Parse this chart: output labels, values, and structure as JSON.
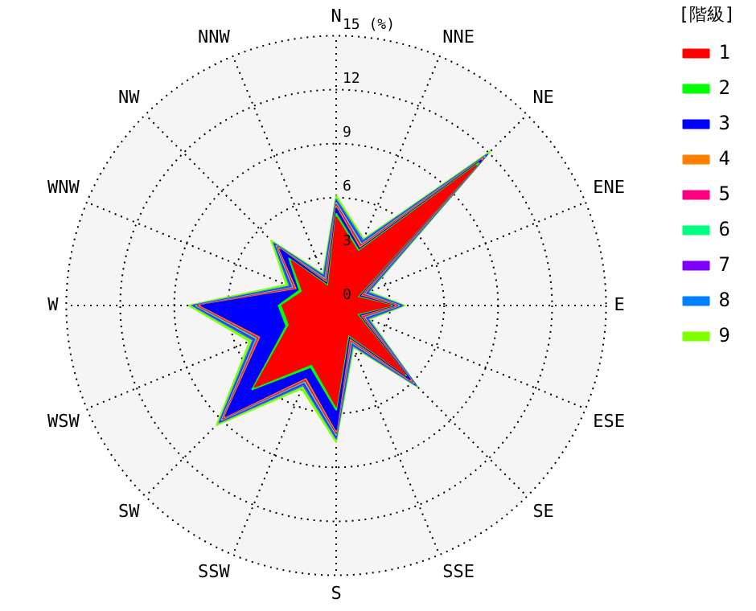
{
  "chart_data": {
    "type": "radar",
    "categories": [
      "N",
      "NNE",
      "NE",
      "ENE",
      "E",
      "ESE",
      "SE",
      "SSE",
      "S",
      "SSW",
      "SW",
      "WSW",
      "W",
      "WNW",
      "NW",
      "NNW"
    ],
    "series": [
      {
        "name": "1",
        "color": "#ff0000",
        "values": [
          4.9,
          3.2,
          11.0,
          1.2,
          3.0,
          1.2,
          5.4,
          1.7,
          5.6,
          3.5,
          6.4,
          2.8,
          3.0,
          2.0,
          3.5,
          1.1
        ]
      },
      {
        "name": "2",
        "color": "#00ff00",
        "values": [
          5.1,
          3.3,
          11.2,
          1.3,
          3.1,
          1.3,
          5.5,
          1.8,
          5.8,
          3.7,
          6.6,
          3.0,
          3.2,
          2.2,
          3.7,
          1.2
        ]
      },
      {
        "name": "3",
        "color": "#0000ff",
        "values": [
          5.4,
          3.4,
          11.4,
          1.4,
          3.2,
          1.4,
          5.8,
          1.9,
          6.9,
          4.3,
          8.7,
          4.5,
          7.5,
          2.3,
          4.4,
          1.3
        ]
      },
      {
        "name": "4",
        "color": "#ff8000",
        "values": [
          5.5,
          3.5,
          11.5,
          1.5,
          3.3,
          1.5,
          5.9,
          2.0,
          7.0,
          4.4,
          8.8,
          4.6,
          7.6,
          2.4,
          4.5,
          1.4
        ]
      },
      {
        "name": "5",
        "color": "#ff0080",
        "values": [
          5.6,
          3.6,
          11.6,
          1.6,
          3.4,
          1.6,
          6.0,
          2.1,
          7.1,
          4.5,
          8.9,
          4.7,
          7.7,
          2.5,
          4.6,
          1.5
        ]
      },
      {
        "name": "6",
        "color": "#00ff80",
        "values": [
          5.7,
          3.7,
          11.7,
          1.7,
          3.5,
          1.7,
          6.1,
          2.2,
          7.2,
          4.6,
          9.0,
          4.8,
          7.8,
          2.6,
          4.7,
          1.6
        ]
      },
      {
        "name": "7",
        "color": "#8000ff",
        "values": [
          5.8,
          3.8,
          11.8,
          1.8,
          3.6,
          1.8,
          6.2,
          2.3,
          7.3,
          4.7,
          9.1,
          4.9,
          7.9,
          2.7,
          4.8,
          1.7
        ]
      },
      {
        "name": "8",
        "color": "#0080ff",
        "values": [
          5.9,
          3.9,
          11.9,
          1.9,
          3.7,
          1.9,
          6.3,
          2.4,
          7.4,
          4.8,
          9.2,
          5.0,
          8.0,
          2.8,
          4.9,
          1.8
        ]
      },
      {
        "name": "9",
        "color": "#80ff00",
        "values": [
          6.1,
          4.0,
          12.1,
          2.0,
          3.8,
          2.0,
          6.4,
          2.5,
          7.6,
          5.0,
          9.4,
          5.2,
          8.2,
          3.0,
          5.1,
          1.9
        ]
      }
    ],
    "ylim": [
      0,
      15
    ],
    "yticks": [
      0,
      3,
      6,
      9,
      12,
      {
        "value": 15,
        "label": "15 (%)"
      }
    ],
    "grid": true,
    "legend": "right",
    "legend_title": "[階級]",
    "marker": "none"
  }
}
